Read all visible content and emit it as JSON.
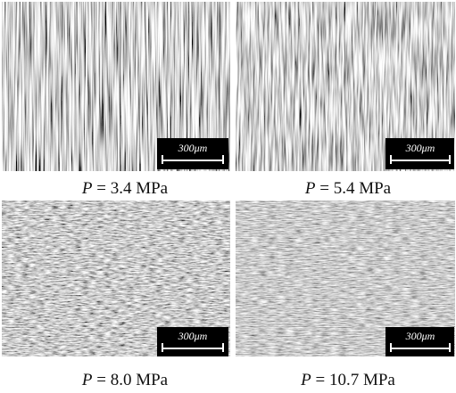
{
  "panels": [
    {
      "variable": "P",
      "caption": "= 3.4 MPa",
      "scale_bar": "300μm"
    },
    {
      "variable": "P",
      "caption": "= 5.4 MPa",
      "scale_bar": "300μm"
    },
    {
      "variable": "P",
      "caption": "= 8.0 MPa",
      "scale_bar": "300μm"
    },
    {
      "variable": "P",
      "caption": "= 10.7 MPa",
      "scale_bar": "300μm"
    }
  ]
}
